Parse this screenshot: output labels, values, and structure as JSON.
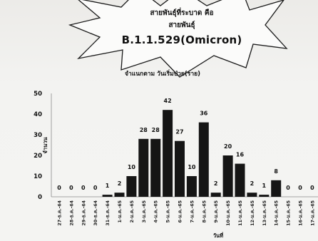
{
  "callout": {
    "line1": "สายพันธุ์ที่ระบาด คือ",
    "line2": "สายพันธุ์",
    "line3": "B.1.1.529(Omicron)"
  },
  "chart_data": {
    "type": "bar",
    "title": "จำแนกตาม วันเริ่มป่วย(ราย)",
    "xlabel": "วันที่",
    "ylabel": "จำนวน",
    "categories": [
      "27-ธ.ค.-64",
      "28-ธ.ค.-64",
      "29-ธ.ค.-64",
      "30-ธ.ค.-64",
      "31-ธ.ค.-64",
      "1-ม.ค.-65",
      "2-ม.ค.-65",
      "3-ม.ค.-65",
      "4-ม.ค.-65",
      "5-ม.ค.-65",
      "6-ม.ค.-65",
      "7-ม.ค.-65",
      "8-ม.ค.-65",
      "9-ม.ค.-65",
      "10-ม.ค.-65",
      "11-ม.ค.-65",
      "12-ม.ค.-65",
      "13-ม.ค.-65",
      "14-ม.ค.-65",
      "15-ม.ค.-65",
      "16-ม.ค.-65",
      "17-ม.ค.-65"
    ],
    "values": [
      0,
      0,
      0,
      0,
      1,
      2,
      10,
      28,
      28,
      42,
      27,
      10,
      36,
      2,
      20,
      16,
      2,
      1,
      8,
      0,
      0,
      0
    ],
    "ylim": [
      0,
      50
    ],
    "yticks": [
      0,
      10,
      20,
      30,
      40,
      50
    ],
    "grid": false,
    "legend": "none",
    "bar_color": "#151515"
  }
}
